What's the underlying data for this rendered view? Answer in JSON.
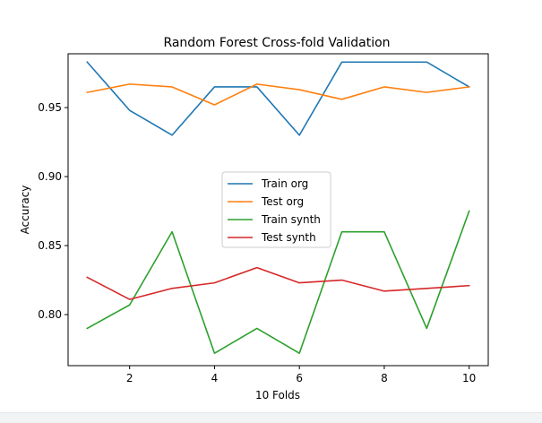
{
  "chart_data": {
    "type": "line",
    "title": "Random Forest Cross-fold Validation",
    "xlabel": "10 Folds",
    "ylabel": "Accuracy",
    "x": [
      1,
      2,
      3,
      4,
      5,
      6,
      7,
      8,
      9,
      10
    ],
    "xticks": [
      2,
      4,
      6,
      8,
      10
    ],
    "yticks": [
      0.8,
      0.85,
      0.9,
      0.95
    ],
    "ytick_labels": [
      "0.80",
      "0.85",
      "0.90",
      "0.95"
    ],
    "xlim": [
      0.55,
      10.45
    ],
    "ylim": [
      0.763,
      0.989
    ],
    "legend_position": "center",
    "grid": false,
    "series": [
      {
        "name": "Train org",
        "color": "#1f77b4",
        "values": [
          0.983,
          0.948,
          0.93,
          0.965,
          0.965,
          0.93,
          0.983,
          0.983,
          0.983,
          0.965
        ]
      },
      {
        "name": "Test org",
        "color": "#ff7f0e",
        "values": [
          0.961,
          0.967,
          0.965,
          0.952,
          0.967,
          0.963,
          0.956,
          0.965,
          0.961,
          0.965
        ]
      },
      {
        "name": "Train synth",
        "color": "#2ca02c",
        "values": [
          0.79,
          0.807,
          0.86,
          0.772,
          0.79,
          0.772,
          0.86,
          0.86,
          0.79,
          0.875
        ]
      },
      {
        "name": "Test synth",
        "color": "#d62728",
        "values": [
          0.827,
          0.811,
          0.819,
          0.823,
          0.834,
          0.823,
          0.825,
          0.817,
          0.819,
          0.821
        ]
      }
    ]
  }
}
